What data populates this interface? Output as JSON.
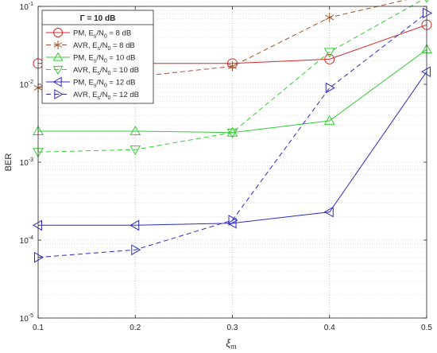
{
  "chart_data": {
    "type": "line",
    "title": "",
    "xlabel": "ξ",
    "xlabel_sub": "m",
    "ylabel": "BER",
    "xlim": [
      0.1,
      0.5
    ],
    "ylim": [
      1e-05,
      0.1
    ],
    "yscale": "log",
    "grid": "major and minor, dotted",
    "x_ticks": [
      0.1,
      0.2,
      0.3,
      0.4,
      0.5
    ],
    "x_tick_labels": [
      "0.1",
      "0.2",
      "0.3",
      "0.4",
      "0.5"
    ],
    "y_ticks": [
      1e-05,
      0.0001,
      0.001,
      0.01,
      0.1
    ],
    "y_tick_labels": [
      {
        "base": "10",
        "exp": "-5"
      },
      {
        "base": "10",
        "exp": "-4"
      },
      {
        "base": "10",
        "exp": "-3"
      },
      {
        "base": "10",
        "exp": "-2"
      },
      {
        "base": "10",
        "exp": "-1"
      }
    ],
    "legend": {
      "position": "top-left",
      "title": "Γ = 10 dB"
    },
    "x": [
      0.1,
      0.2,
      0.3,
      0.4,
      0.5
    ],
    "series": [
      {
        "name": "PM, Es/N0 = 8 dB",
        "label_parts": [
          "PM, E",
          "s",
          "/N",
          "0",
          " = 8 dB"
        ],
        "color": "#d62728",
        "dash": "solid",
        "marker": "circle",
        "values": [
          0.0185,
          0.0185,
          0.0185,
          0.021,
          0.058
        ]
      },
      {
        "name": "AVR, Es/N0 = 8 dB",
        "label_parts": [
          "AVR, E",
          "s",
          "/N",
          "0",
          " = 8 dB"
        ],
        "color": "#a0522d",
        "dash": "dashed",
        "marker": "star",
        "values": [
          0.009,
          0.0125,
          0.017,
          0.072,
          0.14
        ]
      },
      {
        "name": "PM, Es/N0 = 10 dB",
        "label_parts": [
          "PM, E",
          "s",
          "/N",
          "0",
          " = 10 dB"
        ],
        "color": "#33cc33",
        "dash": "solid",
        "marker": "triangle-up",
        "values": [
          0.0025,
          0.0025,
          0.0024,
          0.0034,
          0.028
        ]
      },
      {
        "name": "AVR, Es/N0 = 10 dB",
        "label_parts": [
          "AVR, E",
          "s",
          "/N",
          "0",
          " = 10 dB"
        ],
        "color": "#33cc33",
        "dash": "dashed",
        "marker": "triangle-down",
        "values": [
          0.00135,
          0.00145,
          0.0024,
          0.026,
          0.13
        ]
      },
      {
        "name": "PM, Es/N0 = 12 dB",
        "label_parts": [
          "PM, E",
          "s",
          "/N",
          "0",
          " = 12 dB"
        ],
        "color": "#2b2bc8",
        "dash": "solid",
        "marker": "triangle-left",
        "values": [
          0.000155,
          0.000155,
          0.000165,
          0.00023,
          0.0145
        ]
      },
      {
        "name": "AVR, Es/N0 = 12 dB",
        "label_parts": [
          "AVR, E",
          "s",
          "/N",
          "0",
          " = 12 dB"
        ],
        "color": "#2b2bc8",
        "dash": "dashed",
        "marker": "triangle-right",
        "values": [
          6e-05,
          7.5e-05,
          0.00018,
          0.009,
          0.082
        ]
      }
    ]
  }
}
